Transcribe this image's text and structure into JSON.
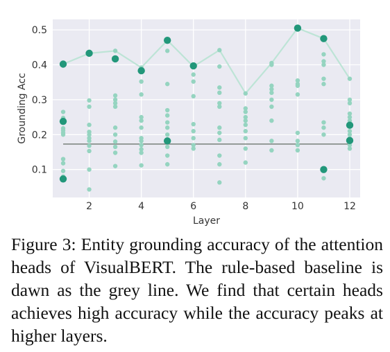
{
  "chart_data": {
    "type": "scatter",
    "title": "",
    "xlabel": "Layer",
    "ylabel": "Grounding Acc",
    "xlim": [
      0.6,
      12.4
    ],
    "ylim": [
      0.02,
      0.53
    ],
    "xticks": [
      2,
      4,
      6,
      8,
      10,
      12
    ],
    "yticks": [
      0.1,
      0.2,
      0.3,
      0.4,
      0.5
    ],
    "xtick_labels": [
      "2",
      "4",
      "6",
      "8",
      "10",
      "12"
    ],
    "ytick_labels": [
      "0.1",
      "0.2",
      "0.3",
      "0.4",
      "0.5"
    ],
    "grid": true,
    "colors": {
      "background": "#eaeaf2",
      "points": "#95d4c0",
      "highlight": "#22977a",
      "max_line": "#bde4d6",
      "baseline": "#888f8b"
    },
    "max_line": {
      "x": [
        1,
        2,
        3,
        4,
        5,
        6,
        7,
        8,
        9,
        10,
        11,
        12
      ],
      "y": [
        0.402,
        0.433,
        0.44,
        0.392,
        0.47,
        0.395,
        0.442,
        0.318,
        0.405,
        0.505,
        0.475,
        0.36
      ]
    },
    "baseline": {
      "y": 0.173
    },
    "head_points": [
      {
        "x": 1,
        "y": [
          0.265,
          0.248,
          0.218,
          0.212,
          0.205,
          0.2,
          0.13,
          0.118,
          0.096,
          0.08
        ]
      },
      {
        "x": 2,
        "y": [
          0.433,
          0.298,
          0.28,
          0.228,
          0.208,
          0.2,
          0.19,
          0.182,
          0.168,
          0.153,
          0.1,
          0.043
        ]
      },
      {
        "x": 3,
        "y": [
          0.44,
          0.312,
          0.3,
          0.29,
          0.28,
          0.22,
          0.2,
          0.18,
          0.165,
          0.148,
          0.11
        ]
      },
      {
        "x": 4,
        "y": [
          0.392,
          0.352,
          0.315,
          0.25,
          0.24,
          0.22,
          0.19,
          0.182,
          0.17,
          0.158,
          0.148,
          0.112
        ]
      },
      {
        "x": 5,
        "y": [
          0.47,
          0.44,
          0.345,
          0.27,
          0.255,
          0.235,
          0.22,
          0.2,
          0.165,
          0.14,
          0.115
        ]
      },
      {
        "x": 6,
        "y": [
          0.395,
          0.372,
          0.352,
          0.31,
          0.23,
          0.21,
          0.19,
          0.17,
          0.16
        ]
      },
      {
        "x": 7,
        "y": [
          0.442,
          0.395,
          0.335,
          0.32,
          0.29,
          0.28,
          0.22,
          0.205,
          0.185,
          0.14,
          0.115,
          0.063
        ]
      },
      {
        "x": 8,
        "y": [
          0.318,
          0.275,
          0.265,
          0.25,
          0.24,
          0.228,
          0.21,
          0.19,
          0.16,
          0.12
        ]
      },
      {
        "x": 9,
        "y": [
          0.405,
          0.4,
          0.34,
          0.33,
          0.32,
          0.3,
          0.28,
          0.24,
          0.182,
          0.155
        ]
      },
      {
        "x": 10,
        "y": [
          0.505,
          0.355,
          0.345,
          0.34,
          0.315,
          0.205,
          0.182,
          0.17,
          0.155
        ]
      },
      {
        "x": 11,
        "y": [
          0.475,
          0.43,
          0.41,
          0.4,
          0.36,
          0.345,
          0.235,
          0.22,
          0.2,
          0.075
        ]
      },
      {
        "x": 12,
        "y": [
          0.36,
          0.3,
          0.29,
          0.26,
          0.25,
          0.24,
          0.23,
          0.21,
          0.2,
          0.19,
          0.17,
          0.16
        ]
      }
    ],
    "highlight_points": [
      {
        "x": 1,
        "y": 0.402
      },
      {
        "x": 1,
        "y": 0.238
      },
      {
        "x": 1,
        "y": 0.073
      },
      {
        "x": 2,
        "y": 0.433
      },
      {
        "x": 3,
        "y": 0.417
      },
      {
        "x": 4,
        "y": 0.383
      },
      {
        "x": 5,
        "y": 0.47
      },
      {
        "x": 5,
        "y": 0.182
      },
      {
        "x": 6,
        "y": 0.397
      },
      {
        "x": 10,
        "y": 0.505
      },
      {
        "x": 11,
        "y": 0.475
      },
      {
        "x": 11,
        "y": 0.1
      },
      {
        "x": 12,
        "y": 0.227
      },
      {
        "x": 12,
        "y": 0.183
      }
    ]
  },
  "caption": "Figure 3: Entity grounding accuracy of the attention heads of VisualBERT. The rule-based baseline is dawn as the grey line. We find that certain heads achieves high accuracy while the accuracy peaks at higher layers."
}
